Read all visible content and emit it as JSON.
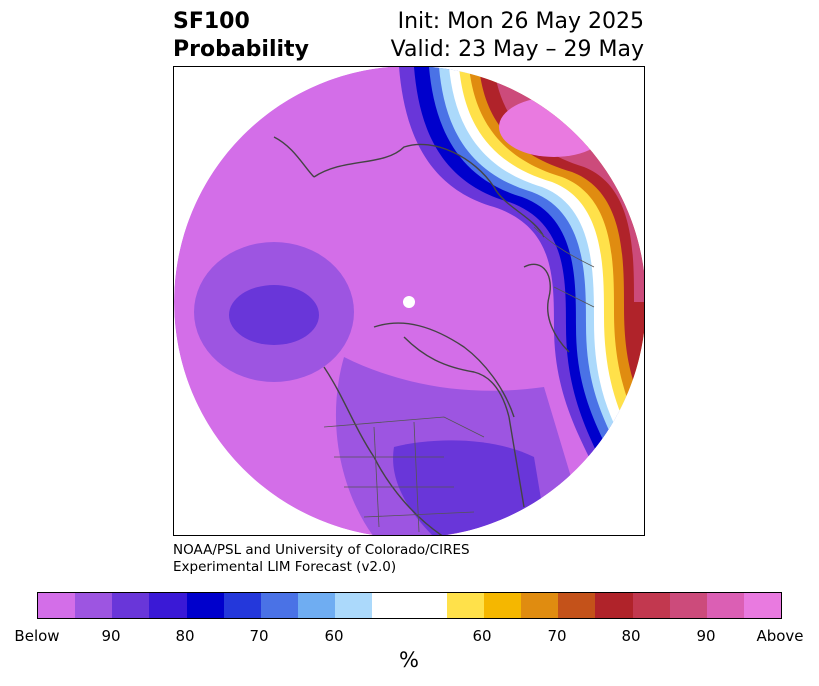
{
  "title": {
    "left_line1": "SF100",
    "left_line2": "Probability",
    "right_line1": "Init: Mon 26 May 2025",
    "right_line2": "Valid: 23 May – 29 May"
  },
  "credit": {
    "line1": "NOAA/PSL and University of Colorado/CIRES",
    "line2": "Experimental LIM Forecast (v2.0)"
  },
  "colorbar": {
    "colors": [
      "#d36ee8",
      "#9d55e1",
      "#6936d9",
      "#3a19d6",
      "#0000cc",
      "#2438db",
      "#4a72e6",
      "#6fadf2",
      "#abd9fb",
      "#ffffff",
      "#ffffff",
      "#ffe14a",
      "#f5b700",
      "#e08c10",
      "#c4521a",
      "#b0232a",
      "#c2384f",
      "#cc4b7b",
      "#db5fb4",
      "#e97ae0"
    ],
    "tick_labels": [
      "Below",
      "90",
      "80",
      "70",
      "60",
      "60",
      "70",
      "80",
      "90",
      "Above"
    ],
    "units": "%"
  },
  "map": {
    "projection": "north-polar-stereographic",
    "dominant_category": "Below",
    "features": [
      "coastlines",
      "country borders",
      "US state borders",
      "Canadian province borders"
    ]
  }
}
